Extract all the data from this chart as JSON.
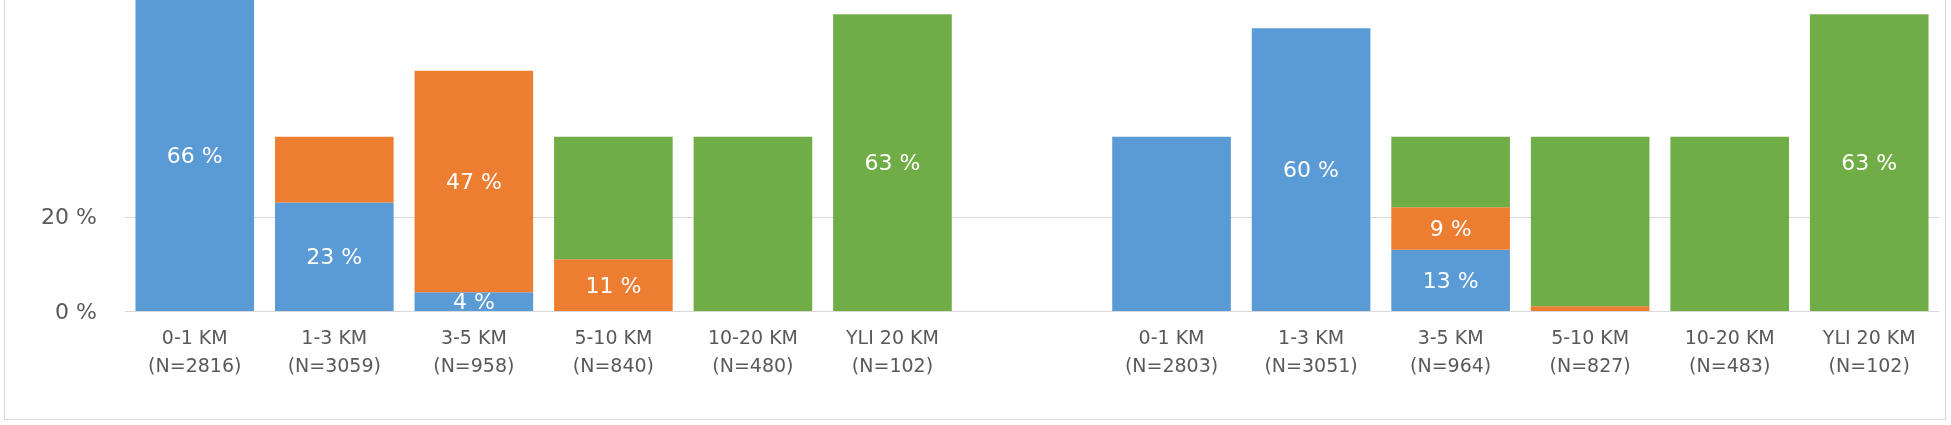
{
  "chart_data": {
    "type": "bar",
    "stacked": true,
    "categories": [
      "0-1 KM\n(N=2816)",
      "1-3 KM\n(N=3059)",
      "3-5 KM\n(N=958)",
      "5-10 KM\n(N=840)",
      "10-20 KM\n(N=480)",
      "YLI 20 KM\n(N=102)",
      null,
      "0-1 KM\n(N=2803)",
      "1-3 KM\n(N=3051)",
      "3-5 KM\n(N=964)",
      "5-10 KM\n(N=827)",
      "10-20 KM\n(N=483)",
      "YLI 20 KM\n(N=102)"
    ],
    "series": [
      {
        "color": "#5b9bd5",
        "values": [
          66,
          23,
          4,
          0,
          0,
          0,
          null,
          37,
          60,
          13,
          0,
          0,
          0
        ],
        "value_labels": [
          "66 %",
          "23 %",
          "4 %",
          null,
          null,
          null,
          null,
          null,
          "60 %",
          "13 %",
          null,
          null,
          null
        ]
      },
      {
        "color": "#ed7d31",
        "values": [
          null,
          14,
          47,
          11,
          0,
          0,
          null,
          null,
          null,
          9,
          1,
          0,
          0
        ],
        "value_labels": [
          null,
          null,
          "47 %",
          "11 %",
          null,
          null,
          null,
          null,
          null,
          "9 %",
          null,
          null,
          null
        ]
      },
      {
        "color": "#70ad47",
        "values": [
          null,
          null,
          null,
          26,
          37,
          63,
          null,
          null,
          null,
          15,
          36,
          37,
          63
        ],
        "value_labels": [
          null,
          null,
          null,
          null,
          null,
          "63 %",
          null,
          null,
          null,
          null,
          null,
          null,
          "63 %"
        ]
      }
    ],
    "ylim": [
      0,
      66
    ],
    "yticks": [
      {
        "value": 0,
        "label": "0 %"
      },
      {
        "value": 20,
        "label": "20 %"
      }
    ],
    "grid": "y"
  }
}
